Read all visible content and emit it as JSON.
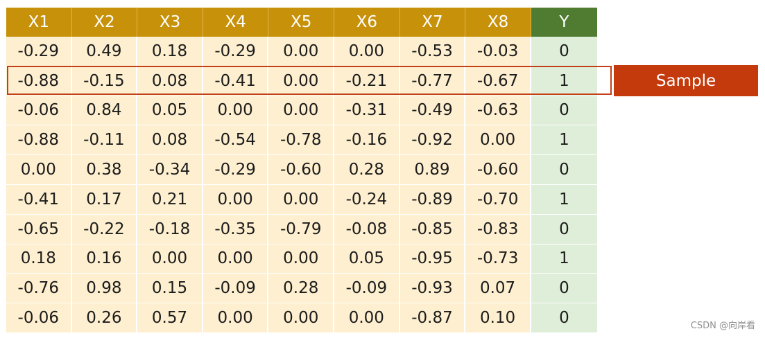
{
  "table": {
    "headers": [
      "X1",
      "X2",
      "X3",
      "X4",
      "X5",
      "X6",
      "X7",
      "X8",
      "Y"
    ],
    "rows": [
      [
        "-0.29",
        "0.49",
        "0.18",
        "-0.29",
        "0.00",
        "0.00",
        "-0.53",
        "-0.03",
        "0"
      ],
      [
        "-0.88",
        "-0.15",
        "0.08",
        "-0.41",
        "0.00",
        "-0.21",
        "-0.77",
        "-0.67",
        "1"
      ],
      [
        "-0.06",
        "0.84",
        "0.05",
        "0.00",
        "0.00",
        "-0.31",
        "-0.49",
        "-0.63",
        "0"
      ],
      [
        "-0.88",
        "-0.11",
        "0.08",
        "-0.54",
        "-0.78",
        "-0.16",
        "-0.92",
        "0.00",
        "1"
      ],
      [
        "0.00",
        "0.38",
        "-0.34",
        "-0.29",
        "-0.60",
        "0.28",
        "0.89",
        "-0.60",
        "0"
      ],
      [
        "-0.41",
        "0.17",
        "0.21",
        "0.00",
        "0.00",
        "-0.24",
        "-0.89",
        "-0.70",
        "1"
      ],
      [
        "-0.65",
        "-0.22",
        "-0.18",
        "-0.35",
        "-0.79",
        "-0.08",
        "-0.85",
        "-0.83",
        "0"
      ],
      [
        "0.18",
        "0.16",
        "0.00",
        "0.00",
        "0.00",
        "0.05",
        "-0.95",
        "-0.73",
        "1"
      ],
      [
        "-0.76",
        "0.98",
        "0.15",
        "-0.09",
        "0.28",
        "-0.09",
        "-0.93",
        "0.07",
        "0"
      ],
      [
        "-0.06",
        "0.26",
        "0.57",
        "0.00",
        "0.00",
        "0.00",
        "-0.87",
        "0.10",
        "0"
      ]
    ]
  },
  "highlight": {
    "row_index": 1,
    "label": "Sample"
  },
  "watermark": "CSDN @向岸看",
  "colors": {
    "header_feature": "#c8910a",
    "header_target": "#4f7c30",
    "cell_feature": "#fdefcf",
    "cell_target": "#dfeed9",
    "highlight": "#c33f18",
    "sample_tag": "#c43a0c"
  }
}
